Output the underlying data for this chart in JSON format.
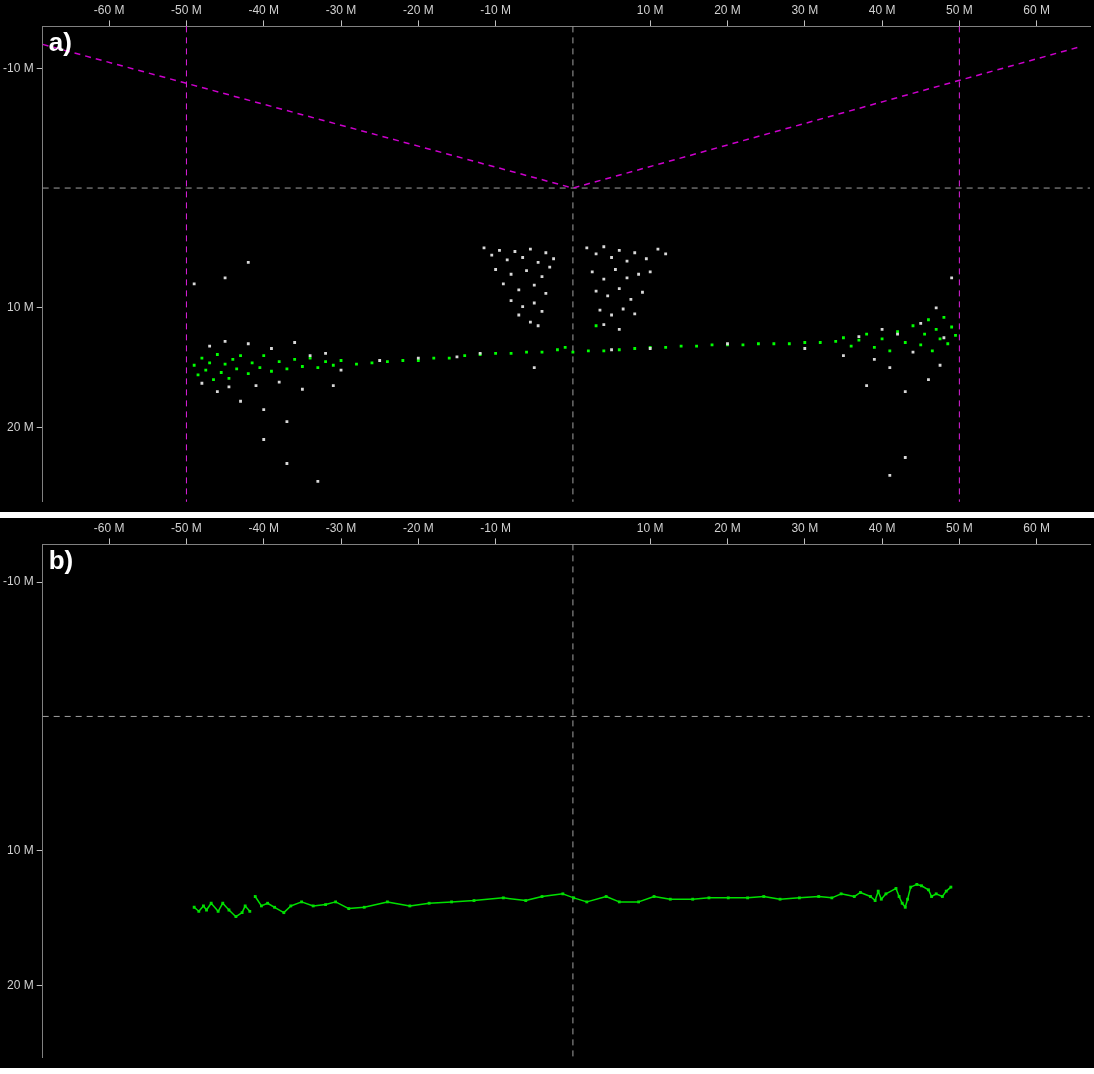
{
  "chart_data": [
    {
      "type": "scatter",
      "title": "a)",
      "xlim": [
        -68.6,
        66.9
      ],
      "ylim": [
        26.2,
        -13.5
      ],
      "xticks": [
        {
          "value": -60,
          "label": "-60 M"
        },
        {
          "value": -50,
          "label": "-50 M"
        },
        {
          "value": -40,
          "label": "-40 M"
        },
        {
          "value": -30,
          "label": "-30 M"
        },
        {
          "value": -20,
          "label": "-20 M"
        },
        {
          "value": -10,
          "label": "-10 M"
        },
        {
          "value": 10,
          "label": "10 M"
        },
        {
          "value": 20,
          "label": "20 M"
        },
        {
          "value": 30,
          "label": "30 M"
        },
        {
          "value": 40,
          "label": "40 M"
        },
        {
          "value": 50,
          "label": "50 M"
        },
        {
          "value": 60,
          "label": "60 M"
        }
      ],
      "yticks": [
        {
          "value": -10,
          "label": "-10 M"
        },
        {
          "value": 10,
          "label": "10 M"
        },
        {
          "value": 20,
          "label": "20 M"
        }
      ],
      "grid": false,
      "legend": false,
      "marker": "square",
      "ref_lines": [
        {
          "axis": "x",
          "value": 0,
          "color": "#a0a0a0",
          "line_style": "dashed"
        },
        {
          "axis": "y",
          "value": 0,
          "color": "#a0a0a0",
          "line_style": "dashed"
        },
        {
          "axis": "x",
          "value": -50,
          "color": "#e020e0",
          "line_style": "dashed"
        },
        {
          "axis": "x",
          "value": 50,
          "color": "#e020e0",
          "line_style": "dashed"
        }
      ],
      "series": [
        {
          "type": "line",
          "color": "#cc00cc",
          "marker": "none",
          "line_style": "dashed",
          "x": [
            -68.6,
            0,
            65.6
          ],
          "values": [
            -12.0,
            0,
            -11.8
          ]
        },
        {
          "color": "#d8d8d8",
          "x": [
            -11.5,
            -10.5,
            -9.5,
            -8.5,
            -7.5,
            -6.5,
            -5.5,
            -4.5,
            -3.5,
            -2.5,
            -10,
            -8,
            -6,
            -4,
            -3,
            -9,
            -7,
            -5,
            -3.5,
            -8,
            -6.5,
            -5,
            -4,
            -7,
            -5.5,
            -4.5,
            1.8,
            3,
            4,
            5,
            6,
            7,
            8,
            9.5,
            11,
            12,
            2.5,
            4,
            5.5,
            7,
            8.5,
            10,
            3,
            4.5,
            6,
            7.5,
            9,
            3.5,
            5,
            6.5,
            8,
            4,
            6,
            -48,
            -47,
            -46,
            -45,
            -44.5,
            -43,
            -42,
            -41,
            -40,
            -39,
            -38,
            -37,
            -36,
            -35,
            -34,
            -32,
            -31,
            -30,
            -25,
            -20,
            -15,
            -12,
            -5,
            5,
            10,
            20,
            30,
            35,
            37,
            38,
            39,
            40,
            41,
            42,
            43,
            44,
            45,
            46,
            47,
            47.5,
            48,
            49,
            43,
            41,
            -40,
            -37,
            -33,
            -49,
            -45,
            -42
          ],
          "values": [
            5.0,
            5.6,
            5.2,
            6.0,
            5.3,
            5.8,
            5.1,
            6.2,
            5.4,
            5.9,
            6.8,
            7.2,
            6.9,
            7.4,
            6.6,
            8.0,
            8.5,
            8.1,
            8.8,
            9.4,
            9.9,
            9.6,
            10.3,
            10.6,
            11.2,
            11.5,
            5.0,
            5.5,
            4.9,
            5.8,
            5.2,
            6.1,
            5.4,
            5.9,
            5.1,
            5.5,
            7.0,
            7.6,
            6.8,
            7.5,
            7.2,
            7.0,
            8.6,
            9.0,
            8.4,
            9.3,
            8.7,
            10.2,
            10.6,
            10.1,
            10.5,
            11.4,
            11.8,
            16.3,
            13.2,
            17.0,
            12.8,
            16.6,
            17.8,
            13.0,
            16.5,
            18.5,
            13.4,
            16.2,
            19.5,
            12.9,
            16.8,
            14.0,
            13.8,
            16.5,
            15.2,
            14.4,
            14.2,
            14.1,
            13.8,
            15.0,
            13.5,
            13.4,
            13.0,
            13.4,
            14.0,
            12.4,
            16.5,
            14.3,
            11.8,
            15.0,
            12.2,
            17.0,
            13.7,
            11.3,
            16.0,
            10.0,
            14.8,
            12.5,
            7.5,
            22.5,
            24.0,
            21.0,
            23.0,
            24.5,
            8.0,
            7.5,
            6.2
          ]
        },
        {
          "color": "#00ff00",
          "x": [
            -49,
            -48.5,
            -48,
            -47.5,
            -47,
            -46.5,
            -46,
            -45.5,
            -45,
            -44.5,
            -44,
            -43.5,
            -43,
            -42,
            -41.5,
            -40.5,
            -40,
            -39,
            -38,
            -37,
            -36,
            -35,
            -34,
            -33,
            -32,
            -31,
            -30,
            -28,
            -26,
            -24,
            -22,
            -20,
            -18,
            -16,
            -14,
            -12,
            -10,
            -8,
            -6,
            -4,
            -2,
            -1,
            0,
            2,
            3,
            4,
            6,
            8,
            10,
            12,
            14,
            16,
            18,
            20,
            22,
            24,
            26,
            28,
            30,
            32,
            34,
            35,
            36,
            37,
            38,
            39,
            40,
            41,
            42,
            43,
            44,
            45,
            45.5,
            46,
            46.5,
            47,
            47.5,
            48,
            48.5,
            49,
            49.5
          ],
          "values": [
            14.8,
            15.6,
            14.2,
            15.2,
            14.6,
            16.0,
            13.9,
            15.4,
            14.7,
            15.9,
            14.3,
            15.1,
            14.0,
            15.5,
            14.6,
            15.0,
            14.0,
            15.3,
            14.5,
            15.1,
            14.3,
            14.9,
            14.2,
            15.0,
            14.5,
            14.8,
            14.4,
            14.7,
            14.6,
            14.5,
            14.4,
            14.4,
            14.2,
            14.2,
            14.0,
            13.9,
            13.8,
            13.8,
            13.7,
            13.7,
            13.5,
            13.3,
            13.7,
            13.6,
            11.5,
            13.6,
            13.5,
            13.4,
            13.3,
            13.3,
            13.2,
            13.2,
            13.1,
            13.1,
            13.1,
            13.0,
            13.0,
            13.0,
            12.9,
            12.9,
            12.8,
            12.5,
            13.2,
            12.7,
            12.2,
            13.3,
            12.6,
            13.6,
            12.0,
            12.9,
            11.5,
            13.1,
            12.2,
            11.0,
            13.6,
            11.8,
            12.6,
            10.8,
            13.0,
            11.6,
            12.3
          ]
        }
      ]
    },
    {
      "type": "line",
      "title": "b)",
      "xlim": [
        -68.6,
        66.9
      ],
      "ylim": [
        25.4,
        -12.8
      ],
      "xticks": [
        {
          "value": -60,
          "label": "-60 M"
        },
        {
          "value": -50,
          "label": "-50 M"
        },
        {
          "value": -40,
          "label": "-40 M"
        },
        {
          "value": -30,
          "label": "-30 M"
        },
        {
          "value": -20,
          "label": "-20 M"
        },
        {
          "value": -10,
          "label": "-10 M"
        },
        {
          "value": 10,
          "label": "10 M"
        },
        {
          "value": 20,
          "label": "20 M"
        },
        {
          "value": 30,
          "label": "30 M"
        },
        {
          "value": 40,
          "label": "40 M"
        },
        {
          "value": 50,
          "label": "50 M"
        },
        {
          "value": 60,
          "label": "60 M"
        }
      ],
      "yticks": [
        {
          "value": -10,
          "label": "-10 M"
        },
        {
          "value": 10,
          "label": "10 M"
        },
        {
          "value": 20,
          "label": "20 M"
        }
      ],
      "grid": false,
      "legend": false,
      "marker": "square",
      "line_style": "solid",
      "ref_lines": [
        {
          "axis": "x",
          "value": 0,
          "color": "#a0a0a0",
          "line_style": "dashed"
        },
        {
          "axis": "y",
          "value": 0,
          "color": "#a0a0a0",
          "line_style": "dashed"
        }
      ],
      "series": [
        {
          "color": "#00e000",
          "x": [
            -49.0,
            -48.4,
            -47.8,
            -47.4,
            -46.8,
            -45.9,
            -45.3,
            -44.5,
            -43.6,
            -42.8,
            -42.4,
            -41.8,
            -41.4,
            -41.1,
            -40.3,
            -39.5,
            -38.6,
            -37.4,
            -36.5,
            -35.1,
            -33.6,
            -32.0,
            -30.7,
            -29.0,
            -27.0,
            -24.0,
            -21.1,
            -18.6,
            -15.7,
            -12.8,
            -9.0,
            -6.1,
            -4.0,
            -1.3,
            0.1,
            1.8,
            4.3,
            6.0,
            8.5,
            10.5,
            12.6,
            15.5,
            17.6,
            20.1,
            22.6,
            24.7,
            26.8,
            29.3,
            31.8,
            33.5,
            34.7,
            36.4,
            37.2,
            38.5,
            39.1,
            39.5,
            39.9,
            40.5,
            41.8,
            42.2,
            42.6,
            43.0,
            43.3,
            43.7,
            44.5,
            45.1,
            46.0,
            46.4,
            47.0,
            47.8,
            48.3,
            48.9
          ],
          "values": [
            14.2,
            14.5,
            14.1,
            14.4,
            13.9,
            14.5,
            13.9,
            14.4,
            14.9,
            14.6,
            14.1,
            14.5,
            null,
            13.4,
            14.1,
            13.9,
            14.2,
            14.6,
            14.1,
            13.8,
            14.1,
            14.0,
            13.8,
            14.3,
            14.2,
            13.8,
            14.1,
            13.9,
            13.8,
            13.7,
            13.5,
            13.7,
            13.4,
            13.2,
            13.5,
            13.8,
            13.4,
            13.8,
            13.8,
            13.4,
            13.6,
            13.6,
            13.5,
            13.5,
            13.5,
            13.4,
            13.6,
            13.5,
            13.4,
            13.5,
            13.2,
            13.4,
            13.1,
            13.4,
            13.7,
            13.0,
            13.6,
            13.2,
            12.8,
            13.4,
            13.9,
            14.2,
            13.6,
            12.7,
            12.5,
            12.6,
            12.9,
            13.4,
            13.2,
            13.4,
            13.0,
            12.7
          ]
        }
      ]
    }
  ]
}
